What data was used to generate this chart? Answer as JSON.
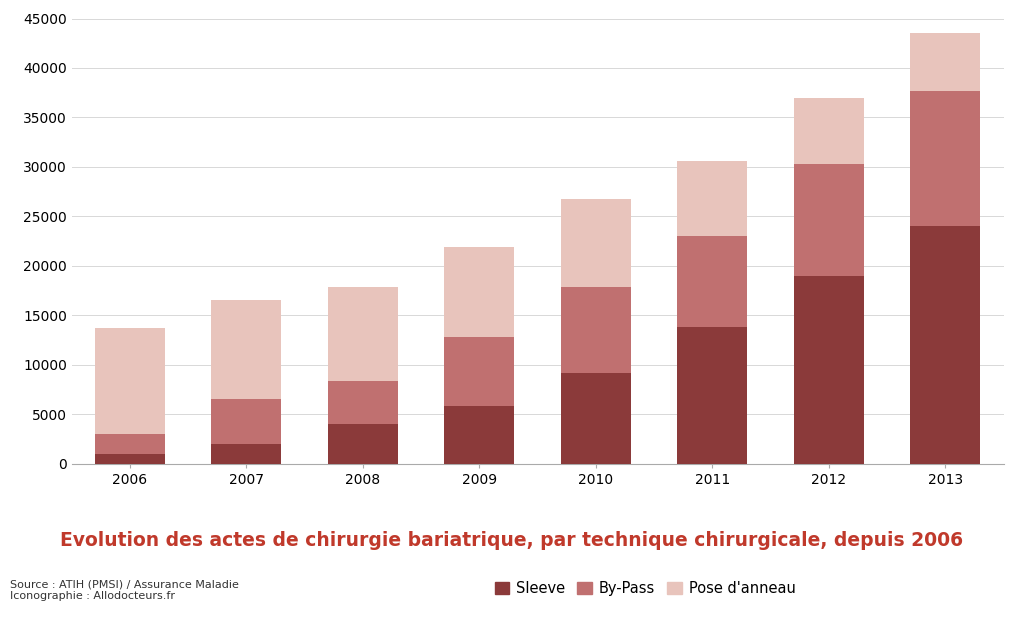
{
  "years": [
    "2006",
    "2007",
    "2008",
    "2009",
    "2010",
    "2011",
    "2012",
    "2013"
  ],
  "sleeve": [
    1000,
    2000,
    4000,
    5800,
    9200,
    13800,
    19000,
    24000
  ],
  "bypass": [
    2000,
    4500,
    4300,
    7000,
    8600,
    9200,
    11300,
    13700
  ],
  "anneau": [
    10700,
    10000,
    9500,
    9100,
    9000,
    7600,
    6700,
    5800
  ],
  "color_sleeve": "#8B3A3A",
  "color_bypass": "#C07070",
  "color_anneau": "#E8C4BC",
  "title": "Evolution des actes de chirurgie bariatrique, par technique chirurgicale, depuis 2006",
  "title_color": "#C0392B",
  "source_line1": "Source : ATIH (PMSI) / Assurance Maladie",
  "source_line2": "Iconographie : Allodocteurs.fr",
  "legend_sleeve": "Sleeve",
  "legend_bypass": "By-Pass",
  "legend_anneau": "Pose d'anneau",
  "ylim_max": 45000,
  "yticks": [
    0,
    5000,
    10000,
    15000,
    20000,
    25000,
    30000,
    35000,
    40000,
    45000
  ],
  "bg_color": "#FFFFFF",
  "bar_width": 0.6,
  "grid_color": "#D8D8D8",
  "title_fontsize": 13.5,
  "tick_fontsize": 10,
  "source_fontsize": 8,
  "legend_fontsize": 10.5
}
